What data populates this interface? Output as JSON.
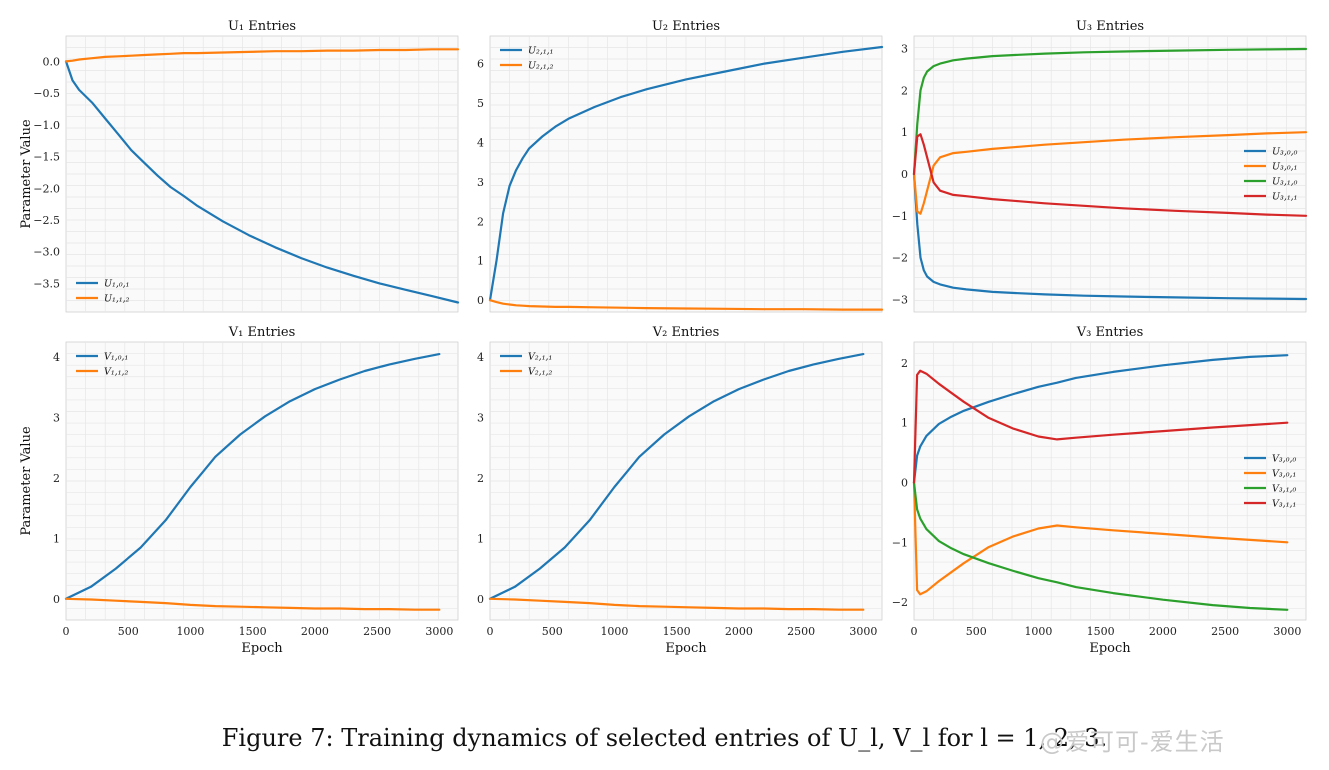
{
  "caption": "Figure 7: Training dynamics of selected entries of U_l, V_l for l = 1, 2, 3.",
  "watermark": "@爱可可-爱生活",
  "colors": {
    "blue": "#1f77b4",
    "orange": "#ff7f0e",
    "green": "#2ca02c",
    "red": "#d62728",
    "grid": "#e6e6e6",
    "bg": "#fafafa"
  },
  "chart_data": [
    {
      "type": "line",
      "title": "U₁ Entries",
      "xlabel": "",
      "ylabel": "Parameter Value",
      "xlim": [
        0,
        3000
      ],
      "ylim": [
        -3.95,
        0.4
      ],
      "xticks": [],
      "yticks": [
        0.0,
        -0.5,
        -1.0,
        -1.5,
        -2.0,
        -2.5,
        -3.0,
        -3.5
      ],
      "ytick_labels": [
        "0.0",
        "−0.5",
        "−1.0",
        "−1.5",
        "−2.0",
        "−2.5",
        "−3.0",
        "−3.5"
      ],
      "legend": "lower-left",
      "x": [
        0,
        50,
        100,
        200,
        300,
        400,
        500,
        600,
        700,
        800,
        900,
        1000,
        1200,
        1400,
        1600,
        1800,
        2000,
        2200,
        2400,
        2600,
        2800,
        3000
      ],
      "series": [
        {
          "name": "U₁,₀,₁",
          "color": "blue",
          "values": [
            0,
            -0.3,
            -0.45,
            -0.65,
            -0.9,
            -1.15,
            -1.4,
            -1.6,
            -1.8,
            -1.98,
            -2.12,
            -2.27,
            -2.52,
            -2.74,
            -2.93,
            -3.1,
            -3.25,
            -3.38,
            -3.5,
            -3.6,
            -3.7,
            -3.8
          ]
        },
        {
          "name": "U₁,₁,₂",
          "color": "orange",
          "values": [
            0,
            0.01,
            0.03,
            0.05,
            0.07,
            0.08,
            0.09,
            0.1,
            0.11,
            0.12,
            0.13,
            0.13,
            0.14,
            0.15,
            0.16,
            0.16,
            0.17,
            0.17,
            0.18,
            0.18,
            0.19,
            0.19
          ]
        }
      ]
    },
    {
      "type": "line",
      "title": "U₂ Entries",
      "xlabel": "",
      "ylabel": "",
      "xlim": [
        0,
        3000
      ],
      "ylim": [
        -0.3,
        6.7
      ],
      "xticks": [],
      "yticks": [
        0,
        1,
        2,
        3,
        4,
        5,
        6
      ],
      "ytick_labels": [
        "0",
        "1",
        "2",
        "3",
        "4",
        "5",
        "6"
      ],
      "legend": "upper-left",
      "x": [
        0,
        50,
        100,
        150,
        200,
        250,
        300,
        400,
        500,
        600,
        800,
        1000,
        1200,
        1500,
        1800,
        2100,
        2400,
        2700,
        3000
      ],
      "series": [
        {
          "name": "U₂,₁,₁",
          "color": "blue",
          "values": [
            0,
            1.0,
            2.2,
            2.9,
            3.3,
            3.6,
            3.85,
            4.15,
            4.4,
            4.6,
            4.9,
            5.15,
            5.35,
            5.6,
            5.8,
            6.0,
            6.15,
            6.3,
            6.42
          ]
        },
        {
          "name": "U₂,₁,₂",
          "color": "orange",
          "values": [
            0,
            -0.05,
            -0.09,
            -0.11,
            -0.13,
            -0.14,
            -0.15,
            -0.16,
            -0.17,
            -0.17,
            -0.18,
            -0.19,
            -0.2,
            -0.21,
            -0.22,
            -0.23,
            -0.23,
            -0.24,
            -0.24
          ]
        }
      ]
    },
    {
      "type": "line",
      "title": "U₃ Entries",
      "xlabel": "",
      "ylabel": "",
      "xlim": [
        0,
        3000
      ],
      "ylim": [
        -3.3,
        3.3
      ],
      "xticks": [],
      "yticks": [
        3,
        2,
        1,
        0,
        -1,
        -2,
        -3
      ],
      "ytick_labels": [
        "3",
        "2",
        "1",
        "0",
        "−1",
        "−2",
        "−3"
      ],
      "legend": "center-right",
      "x": [
        0,
        25,
        50,
        75,
        100,
        150,
        200,
        300,
        400,
        600,
        800,
        1000,
        1300,
        1600,
        2000,
        2400,
        2700,
        3000
      ],
      "series": [
        {
          "name": "U₃,₀,₀",
          "color": "blue",
          "values": [
            0,
            -1.2,
            -2.0,
            -2.3,
            -2.45,
            -2.58,
            -2.64,
            -2.72,
            -2.76,
            -2.82,
            -2.85,
            -2.88,
            -2.91,
            -2.93,
            -2.95,
            -2.97,
            -2.98,
            -2.99
          ]
        },
        {
          "name": "U₃,₀,₁",
          "color": "orange",
          "values": [
            0,
            -0.9,
            -0.95,
            -0.7,
            -0.4,
            0.2,
            0.4,
            0.5,
            0.53,
            0.6,
            0.65,
            0.7,
            0.76,
            0.82,
            0.88,
            0.93,
            0.97,
            1.0
          ]
        },
        {
          "name": "U₃,₁,₀",
          "color": "green",
          "values": [
            0,
            1.2,
            2.0,
            2.3,
            2.45,
            2.58,
            2.64,
            2.72,
            2.76,
            2.82,
            2.85,
            2.88,
            2.91,
            2.93,
            2.95,
            2.97,
            2.98,
            2.99
          ]
        },
        {
          "name": "U₃,₁,₁",
          "color": "red",
          "values": [
            0,
            0.9,
            0.95,
            0.7,
            0.4,
            -0.2,
            -0.4,
            -0.5,
            -0.53,
            -0.6,
            -0.65,
            -0.7,
            -0.76,
            -0.82,
            -0.88,
            -0.93,
            -0.97,
            -1.0
          ]
        }
      ]
    },
    {
      "type": "line",
      "title": "V₁ Entries",
      "xlabel": "Epoch",
      "ylabel": "Parameter Value",
      "xlim": [
        0,
        3150
      ],
      "ylim": [
        -0.35,
        4.25
      ],
      "xticks": [
        0,
        500,
        1000,
        1500,
        2000,
        2500,
        3000
      ],
      "yticks": [
        0,
        1,
        2,
        3,
        4
      ],
      "ytick_labels": [
        "0",
        "1",
        "2",
        "3",
        "4"
      ],
      "legend": "upper-left",
      "x": [
        0,
        200,
        400,
        600,
        800,
        1000,
        1100,
        1200,
        1400,
        1600,
        1800,
        2000,
        2200,
        2400,
        2600,
        2800,
        3000
      ],
      "series": [
        {
          "name": "V₁,₀,₁",
          "color": "blue",
          "values": [
            0,
            0.2,
            0.5,
            0.85,
            1.3,
            1.85,
            2.1,
            2.35,
            2.72,
            3.02,
            3.27,
            3.47,
            3.63,
            3.77,
            3.88,
            3.97,
            4.05
          ]
        },
        {
          "name": "V₁,₁,₂",
          "color": "orange",
          "values": [
            0,
            -0.01,
            -0.03,
            -0.05,
            -0.07,
            -0.1,
            -0.11,
            -0.12,
            -0.13,
            -0.14,
            -0.15,
            -0.16,
            -0.16,
            -0.17,
            -0.17,
            -0.18,
            -0.18
          ]
        }
      ]
    },
    {
      "type": "line",
      "title": "V₂ Entries",
      "xlabel": "Epoch",
      "ylabel": "",
      "xlim": [
        0,
        3150
      ],
      "ylim": [
        -0.35,
        4.25
      ],
      "xticks": [
        0,
        500,
        1000,
        1500,
        2000,
        2500,
        3000
      ],
      "yticks": [
        0,
        1,
        2,
        3,
        4
      ],
      "ytick_labels": [
        "0",
        "1",
        "2",
        "3",
        "4"
      ],
      "legend": "upper-left",
      "x": [
        0,
        200,
        400,
        600,
        800,
        1000,
        1100,
        1200,
        1400,
        1600,
        1800,
        2000,
        2200,
        2400,
        2600,
        2800,
        3000
      ],
      "series": [
        {
          "name": "V₂,₁,₁",
          "color": "blue",
          "values": [
            0,
            0.2,
            0.5,
            0.85,
            1.3,
            1.85,
            2.1,
            2.35,
            2.72,
            3.02,
            3.27,
            3.47,
            3.63,
            3.77,
            3.88,
            3.97,
            4.05
          ]
        },
        {
          "name": "V₂,₁,₂",
          "color": "orange",
          "values": [
            0,
            -0.01,
            -0.03,
            -0.05,
            -0.07,
            -0.1,
            -0.11,
            -0.12,
            -0.13,
            -0.14,
            -0.15,
            -0.16,
            -0.16,
            -0.17,
            -0.17,
            -0.18,
            -0.18
          ]
        }
      ]
    },
    {
      "type": "line",
      "title": "V₃ Entries",
      "xlabel": "Epoch",
      "ylabel": "",
      "xlim": [
        0,
        3150
      ],
      "ylim": [
        -2.3,
        2.35
      ],
      "xticks": [
        0,
        500,
        1000,
        1500,
        2000,
        2500,
        3000
      ],
      "yticks": [
        2,
        1,
        0,
        -1,
        -2
      ],
      "ytick_labels": [
        "2",
        "1",
        "0",
        "−1",
        "−2"
      ],
      "legend": "center-right",
      "x": [
        0,
        25,
        50,
        100,
        200,
        300,
        400,
        600,
        800,
        1000,
        1150,
        1300,
        1600,
        2000,
        2400,
        2700,
        3000
      ],
      "series": [
        {
          "name": "V₃,₀,₀",
          "color": "blue",
          "values": [
            0,
            0.45,
            0.6,
            0.78,
            0.98,
            1.1,
            1.2,
            1.35,
            1.48,
            1.6,
            1.67,
            1.75,
            1.85,
            1.96,
            2.05,
            2.1,
            2.13
          ]
        },
        {
          "name": "V₃,₀,₁",
          "color": "orange",
          "values": [
            0,
            -1.8,
            -1.87,
            -1.82,
            -1.65,
            -1.5,
            -1.35,
            -1.08,
            -0.9,
            -0.77,
            -0.72,
            -0.75,
            -0.8,
            -0.86,
            -0.92,
            -0.96,
            -1.0
          ]
        },
        {
          "name": "V₃,₁,₀",
          "color": "green",
          "values": [
            0,
            -0.45,
            -0.6,
            -0.78,
            -0.98,
            -1.1,
            -1.2,
            -1.35,
            -1.48,
            -1.6,
            -1.67,
            -1.75,
            -1.85,
            -1.96,
            -2.05,
            -2.1,
            -2.13
          ]
        },
        {
          "name": "V₃,₁,₁",
          "color": "red",
          "values": [
            0,
            1.8,
            1.87,
            1.82,
            1.65,
            1.5,
            1.35,
            1.08,
            0.9,
            0.77,
            0.72,
            0.75,
            0.8,
            0.86,
            0.92,
            0.96,
            1.0
          ]
        }
      ]
    }
  ]
}
